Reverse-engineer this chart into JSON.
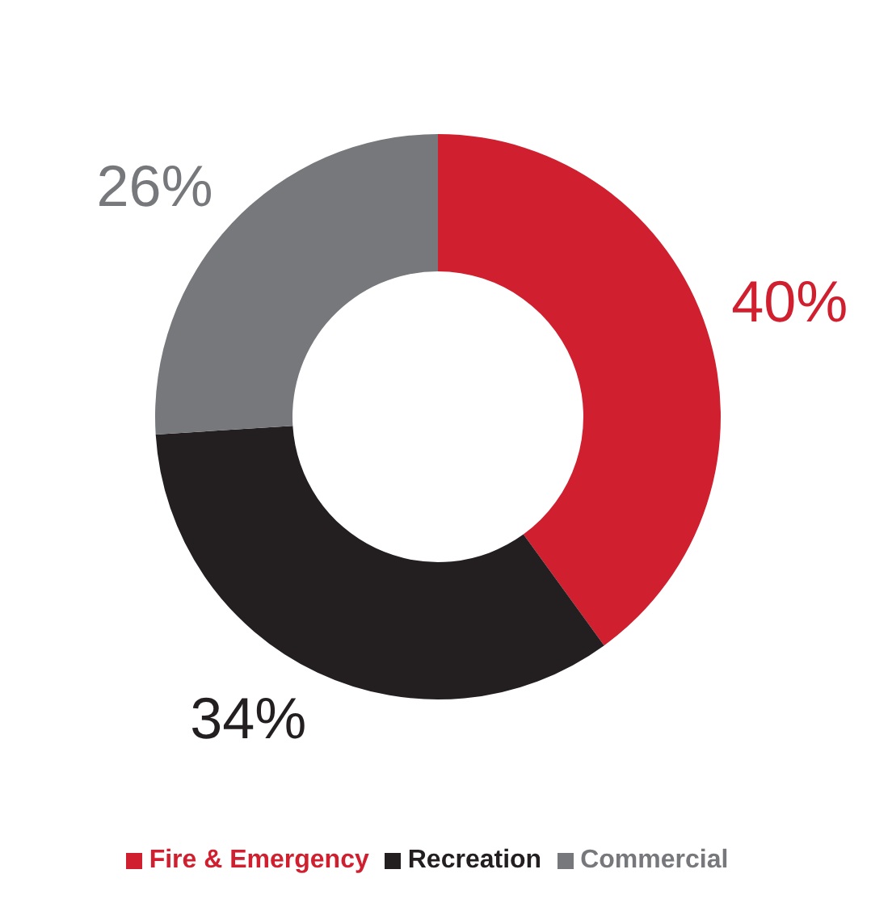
{
  "chart_data": {
    "type": "donut",
    "categories": [
      "Fire & Emergency",
      "Recreation",
      "Commercial"
    ],
    "values": [
      40,
      34,
      26
    ],
    "colors": [
      "#d0202f",
      "#231f20",
      "#77787b"
    ],
    "value_labels": [
      "40%",
      "34%",
      "26%"
    ],
    "legend": "bottom"
  }
}
